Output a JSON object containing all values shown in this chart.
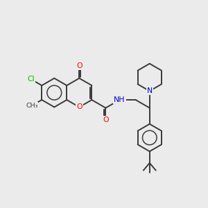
{
  "background_color": "#ebebeb",
  "bond_color": "#3a3a3a",
  "bond_width": 1.4,
  "atom_colors": {
    "O": "#ff0000",
    "N": "#0000cc",
    "Cl": "#00bb00",
    "C": "#3a3a3a"
  },
  "figsize": [
    3.0,
    3.0
  ],
  "dpi": 100
}
